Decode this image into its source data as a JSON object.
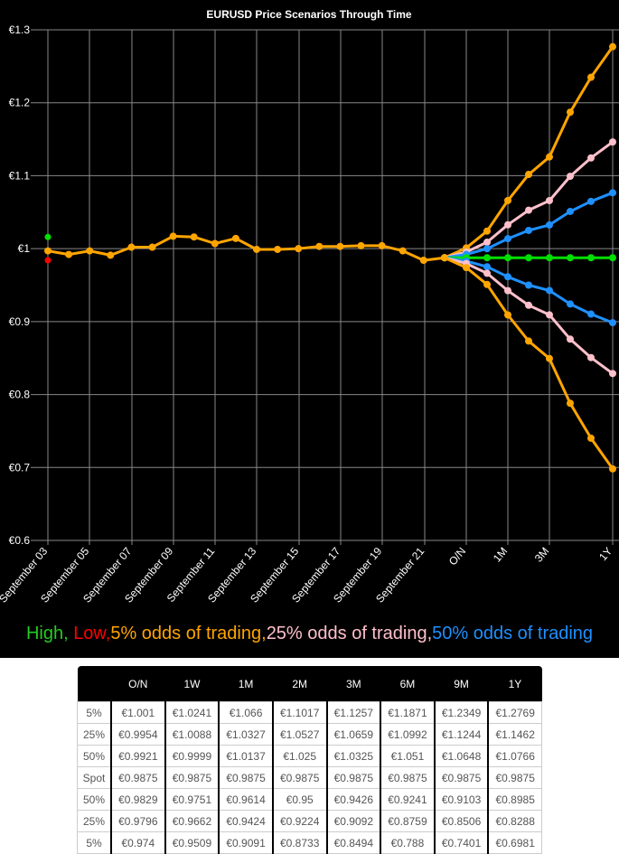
{
  "chart_data": {
    "type": "line",
    "title": "EURUSD Price Scenarios Through Time",
    "xlabel": "",
    "ylabel": "",
    "ylim": [
      0.6,
      1.3
    ],
    "yticks": [
      "€0.6",
      "€0.7",
      "€0.8",
      "€0.9",
      "€1",
      "€1.1",
      "€1.2",
      "€1.3"
    ],
    "ytick_values": [
      0.6,
      0.7,
      0.8,
      0.9,
      1.0,
      1.1,
      1.2,
      1.3
    ],
    "grid": true,
    "legend_position": "bottom",
    "xticks": [
      "September 03",
      "September 05",
      "September 07",
      "September 09",
      "September 11",
      "September 13",
      "September 15",
      "September 17",
      "September 19",
      "September 21",
      "O/N",
      "1M",
      "3M",
      "1Y"
    ],
    "high_marker": {
      "x": "September 03",
      "value": 1.016,
      "color": "#00e000"
    },
    "low_marker": {
      "x": "September 03",
      "value": 0.984,
      "color": "#ff0000"
    },
    "history": {
      "name": "EURUSD history",
      "color": "#ffa500",
      "x": [
        "Sep 03",
        "Sep 04",
        "Sep 05",
        "Sep 06",
        "Sep 07",
        "Sep 08",
        "Sep 09",
        "Sep 10",
        "Sep 11",
        "Sep 12",
        "Sep 13",
        "Sep 14",
        "Sep 15",
        "Sep 16",
        "Sep 17",
        "Sep 18",
        "Sep 19",
        "Sep 20",
        "Sep 21",
        "Sep 22"
      ],
      "values": [
        0.997,
        0.992,
        0.997,
        0.991,
        1.002,
        1.002,
        1.017,
        1.016,
        1.007,
        1.014,
        0.999,
        0.999,
        1.0,
        1.003,
        1.003,
        1.004,
        1.004,
        0.997,
        0.984,
        0.9875
      ]
    },
    "projection_x": [
      "Spot",
      "O/N",
      "1W",
      "1M",
      "2M",
      "3M",
      "6M",
      "9M",
      "1Y"
    ],
    "series": [
      {
        "name": "5% odds of trading (upper)",
        "color": "#ffa500",
        "values": [
          0.9875,
          1.001,
          1.0241,
          1.066,
          1.1017,
          1.1257,
          1.1871,
          1.2349,
          1.2769
        ]
      },
      {
        "name": "25% odds of trading (upper)",
        "color": "#ffc0cb",
        "values": [
          0.9875,
          0.9954,
          1.0088,
          1.0327,
          1.0527,
          1.0659,
          1.0992,
          1.1244,
          1.1462
        ]
      },
      {
        "name": "50% odds of trading (upper)",
        "color": "#1e90ff",
        "values": [
          0.9875,
          0.9921,
          0.9999,
          1.0137,
          1.025,
          1.0325,
          1.051,
          1.0648,
          1.0766
        ]
      },
      {
        "name": "Spot",
        "color": "#00e000",
        "values": [
          0.9875,
          0.9875,
          0.9875,
          0.9875,
          0.9875,
          0.9875,
          0.9875,
          0.9875,
          0.9875
        ]
      },
      {
        "name": "50% odds of trading (lower)",
        "color": "#1e90ff",
        "values": [
          0.9875,
          0.9829,
          0.9751,
          0.9614,
          0.95,
          0.9426,
          0.9241,
          0.9103,
          0.8985
        ]
      },
      {
        "name": "25% odds of trading (lower)",
        "color": "#ffc0cb",
        "values": [
          0.9875,
          0.9796,
          0.9662,
          0.9424,
          0.9224,
          0.9092,
          0.8759,
          0.8506,
          0.8288
        ]
      },
      {
        "name": "5% odds of trading (lower)",
        "color": "#ffa500",
        "values": [
          0.9875,
          0.974,
          0.9509,
          0.9091,
          0.8733,
          0.8494,
          0.788,
          0.7401,
          0.6981
        ]
      }
    ],
    "legend": [
      {
        "label": "High, ",
        "color": "#22cc22"
      },
      {
        "label": "Low,",
        "color": "#ff0000"
      },
      {
        "label": "5% odds of trading,",
        "color": "#ffa500"
      },
      {
        "label": "25% odds of trading,",
        "color": "#ffc0cb"
      },
      {
        "label": "50% odds of trading",
        "color": "#1e90ff"
      }
    ]
  },
  "table": {
    "headers": [
      "",
      "O/N",
      "1W",
      "1M",
      "2M",
      "3M",
      "6M",
      "9M",
      "1Y"
    ],
    "rows": [
      [
        "5%",
        "€1.001",
        "€1.0241",
        "€1.066",
        "€1.1017",
        "€1.1257",
        "€1.1871",
        "€1.2349",
        "€1.2769"
      ],
      [
        "25%",
        "€0.9954",
        "€1.0088",
        "€1.0327",
        "€1.0527",
        "€1.0659",
        "€1.0992",
        "€1.1244",
        "€1.1462"
      ],
      [
        "50%",
        "€0.9921",
        "€0.9999",
        "€1.0137",
        "€1.025",
        "€1.0325",
        "€1.051",
        "€1.0648",
        "€1.0766"
      ],
      [
        "Spot",
        "€0.9875",
        "€0.9875",
        "€0.9875",
        "€0.9875",
        "€0.9875",
        "€0.9875",
        "€0.9875",
        "€0.9875"
      ],
      [
        "50%",
        "€0.9829",
        "€0.9751",
        "€0.9614",
        "€0.95",
        "€0.9426",
        "€0.9241",
        "€0.9103",
        "€0.8985"
      ],
      [
        "25%",
        "€0.9796",
        "€0.9662",
        "€0.9424",
        "€0.9224",
        "€0.9092",
        "€0.8759",
        "€0.8506",
        "€0.8288"
      ],
      [
        "5%",
        "€0.974",
        "€0.9509",
        "€0.9091",
        "€0.8733",
        "€0.8494",
        "€0.788",
        "€0.7401",
        "€0.6981"
      ]
    ]
  }
}
